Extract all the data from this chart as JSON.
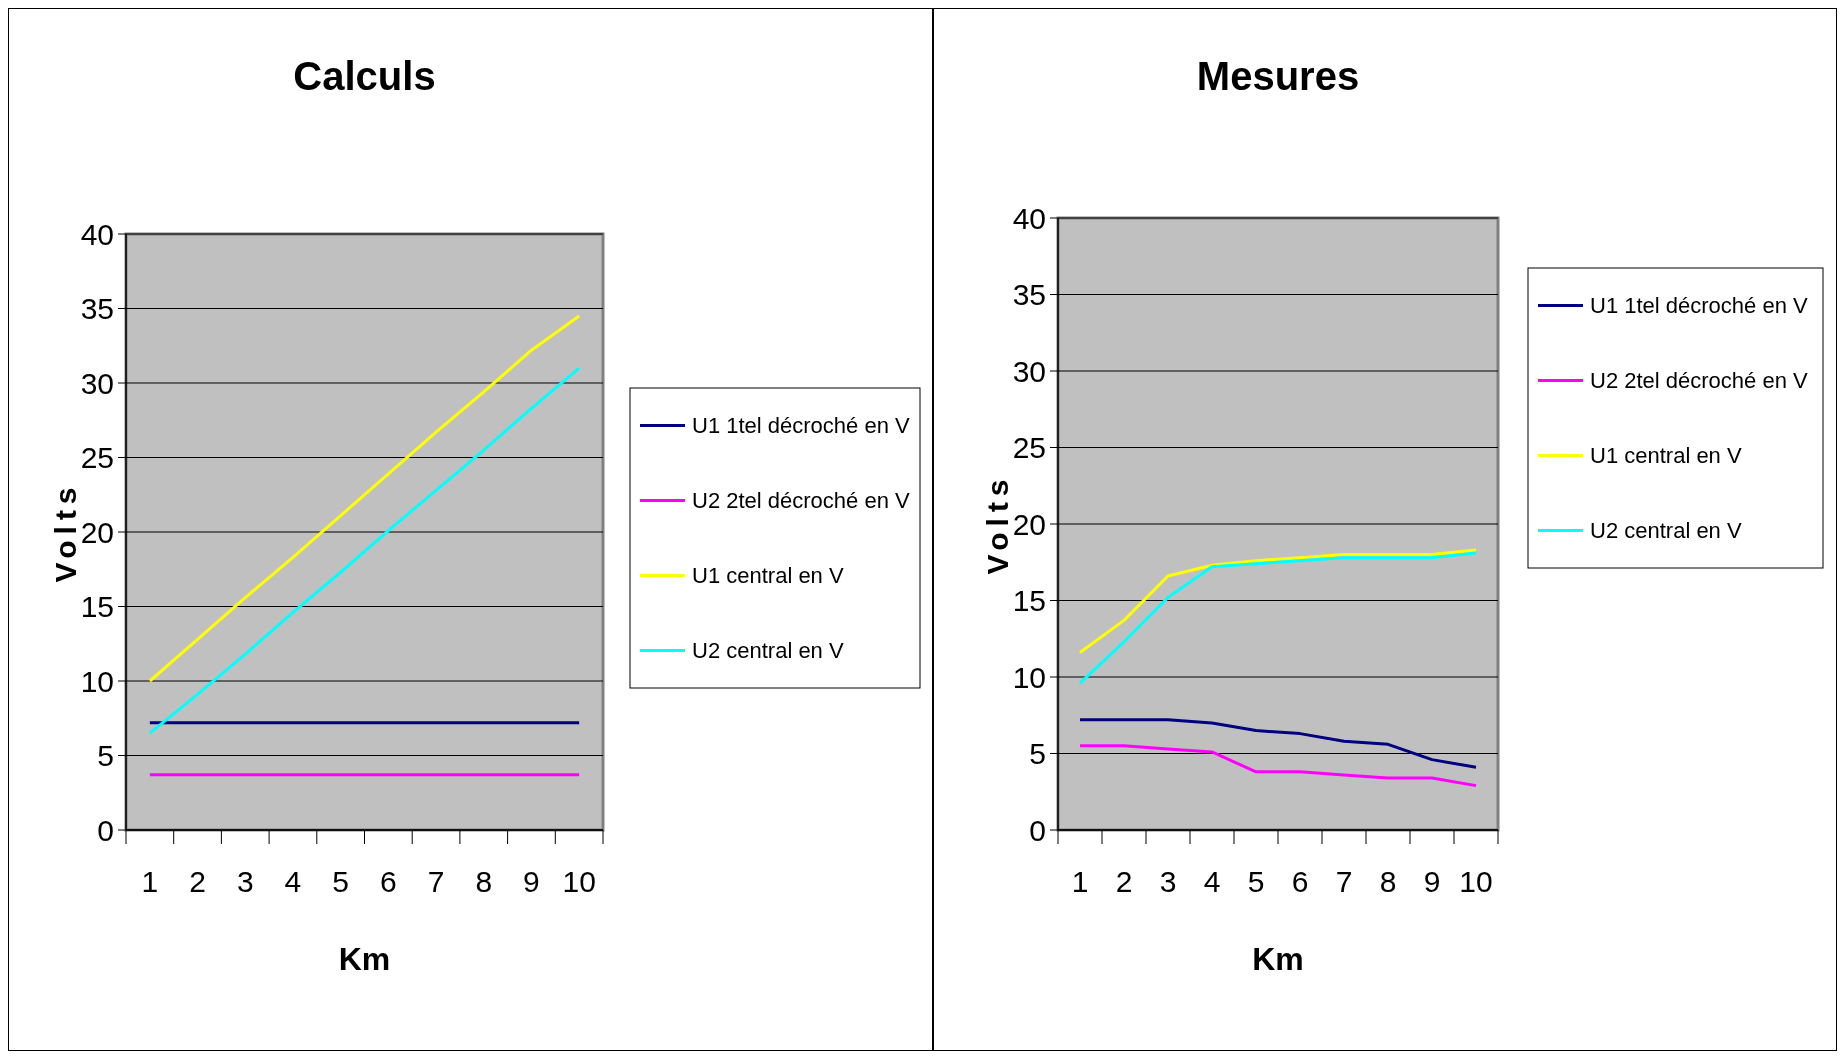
{
  "chart_data": [
    {
      "type": "line",
      "title": "Calculs",
      "xlabel": "Km",
      "ylabel": "Volts",
      "categories": [
        "1",
        "2",
        "3",
        "4",
        "5",
        "6",
        "7",
        "8",
        "9",
        "10"
      ],
      "ylim": [
        0,
        40
      ],
      "yticks": [
        0,
        5,
        10,
        15,
        20,
        25,
        30,
        35,
        40
      ],
      "grid": "y",
      "legend": "right",
      "series": [
        {
          "name": "U1 1tel décroché en V",
          "color": "#000080",
          "values": [
            7.2,
            7.2,
            7.2,
            7.2,
            7.2,
            7.2,
            7.2,
            7.2,
            7.2,
            7.2
          ]
        },
        {
          "name": "U2 2tel décroché en V",
          "color": "#ff00ff",
          "values": [
            3.7,
            3.7,
            3.7,
            3.7,
            3.7,
            3.7,
            3.7,
            3.7,
            3.7,
            3.7
          ]
        },
        {
          "name": "U1 central en V",
          "color": "#ffff00",
          "values": [
            10,
            12.8,
            15.6,
            18.3,
            21.1,
            23.9,
            26.7,
            29.4,
            32.2,
            34.5
          ]
        },
        {
          "name": "U2 central en V",
          "color": "#00ffff",
          "values": [
            6.5,
            9.1,
            11.8,
            14.6,
            17.3,
            20.1,
            22.8,
            25.5,
            28.3,
            31.0
          ]
        }
      ]
    },
    {
      "type": "line",
      "title": "Mesures",
      "xlabel": "Km",
      "ylabel": "Volts",
      "categories": [
        "1",
        "2",
        "3",
        "4",
        "5",
        "6",
        "7",
        "8",
        "9",
        "10"
      ],
      "ylim": [
        0,
        40
      ],
      "yticks": [
        0,
        5,
        10,
        15,
        20,
        25,
        30,
        35,
        40
      ],
      "grid": "y",
      "legend": "right",
      "series": [
        {
          "name": "U1 1tel décroché en V",
          "color": "#000080",
          "values": [
            7.2,
            7.2,
            7.2,
            7.0,
            6.5,
            6.3,
            5.8,
            5.6,
            4.6,
            4.1
          ]
        },
        {
          "name": "U2 2tel décroché en V",
          "color": "#ff00ff",
          "values": [
            5.5,
            5.5,
            5.3,
            5.1,
            3.8,
            3.8,
            3.6,
            3.4,
            3.4,
            2.9
          ]
        },
        {
          "name": "U1 central en V",
          "color": "#ffff00",
          "values": [
            11.6,
            13.7,
            16.6,
            17.3,
            17.6,
            17.8,
            18.0,
            18.0,
            18.0,
            18.3
          ]
        },
        {
          "name": "U2 central en V",
          "color": "#00ffff",
          "values": [
            9.6,
            12.3,
            15.2,
            17.2,
            17.4,
            17.6,
            17.8,
            17.8,
            17.8,
            18.1
          ]
        }
      ]
    }
  ]
}
